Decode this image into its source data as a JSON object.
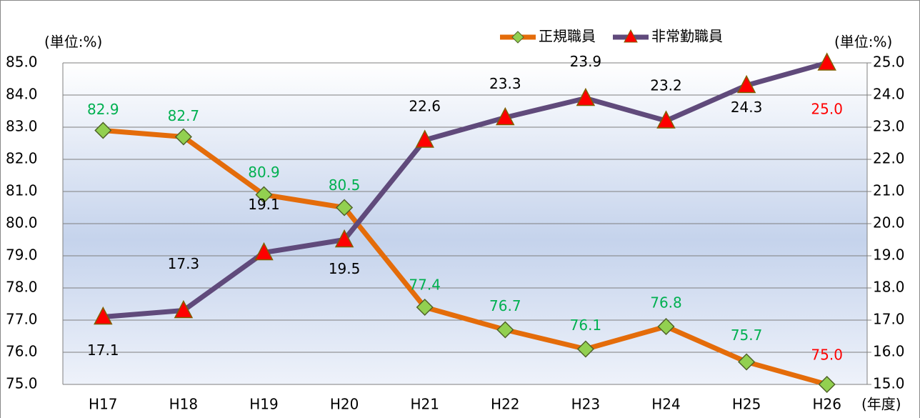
{
  "chart_data": {
    "type": "line",
    "y_unit_label": "(単位:%)",
    "y2_unit_label": "(単位:%)",
    "x_label": "(年度)",
    "categories": [
      "H17",
      "H18",
      "H19",
      "H20",
      "H21",
      "H22",
      "H23",
      "H24",
      "H25",
      "H26"
    ],
    "series": [
      {
        "name": "正規職員",
        "color": "#e46c0a",
        "marker": "diamond",
        "marker_color": "#92d050",
        "label_color": "#00b050",
        "values": [
          82.9,
          82.7,
          80.9,
          80.5,
          77.4,
          76.7,
          76.1,
          76.8,
          75.7,
          75.0
        ],
        "value_labels": [
          "82.9",
          "82.7",
          "80.9",
          "80.5",
          "77.4",
          "76.7",
          "76.1",
          "76.8",
          "75.7",
          "75.0"
        ]
      },
      {
        "name": "非常勤職員",
        "color": "#604a7b",
        "marker": "triangle",
        "marker_color": "#ff0000",
        "label_color": "#000000",
        "axis": "y2",
        "values": [
          17.1,
          17.3,
          19.1,
          19.5,
          22.6,
          23.3,
          23.9,
          23.2,
          24.3,
          25.0
        ],
        "value_labels": [
          "17.1",
          "17.3",
          "19.1",
          "19.5",
          "22.6",
          "23.3",
          "23.9",
          "23.2",
          "24.3",
          "25.0"
        ]
      }
    ],
    "highlight_label_color": "#ff0000",
    "ylim": [
      75,
      85
    ],
    "yticks": [
      {
        "value": 75,
        "label": "75.0"
      },
      {
        "value": 76,
        "label": "76.0"
      },
      {
        "value": 77,
        "label": "77.0"
      },
      {
        "value": 78,
        "label": "78.0"
      },
      {
        "value": 79,
        "label": "79.0"
      },
      {
        "value": 80,
        "label": "80.0"
      },
      {
        "value": 81,
        "label": "81.0"
      },
      {
        "value": 82,
        "label": "82.0"
      },
      {
        "value": 83,
        "label": "83.0"
      },
      {
        "value": 84,
        "label": "84.0"
      },
      {
        "value": 85,
        "label": "85.0"
      }
    ],
    "y2lim": [
      15,
      25
    ],
    "y2ticks": [
      {
        "value": 15,
        "label": "15.0"
      },
      {
        "value": 16,
        "label": "16.0"
      },
      {
        "value": 17,
        "label": "17.0"
      },
      {
        "value": 18,
        "label": "18.0"
      },
      {
        "value": 19,
        "label": "19.0"
      },
      {
        "value": 20,
        "label": "20.0"
      },
      {
        "value": 21,
        "label": "21.0"
      },
      {
        "value": 22,
        "label": "22.0"
      },
      {
        "value": 23,
        "label": "23.0"
      },
      {
        "value": 24,
        "label": "24.0"
      },
      {
        "value": 25,
        "label": "25.0"
      }
    ],
    "grid": true,
    "legend": "top"
  }
}
